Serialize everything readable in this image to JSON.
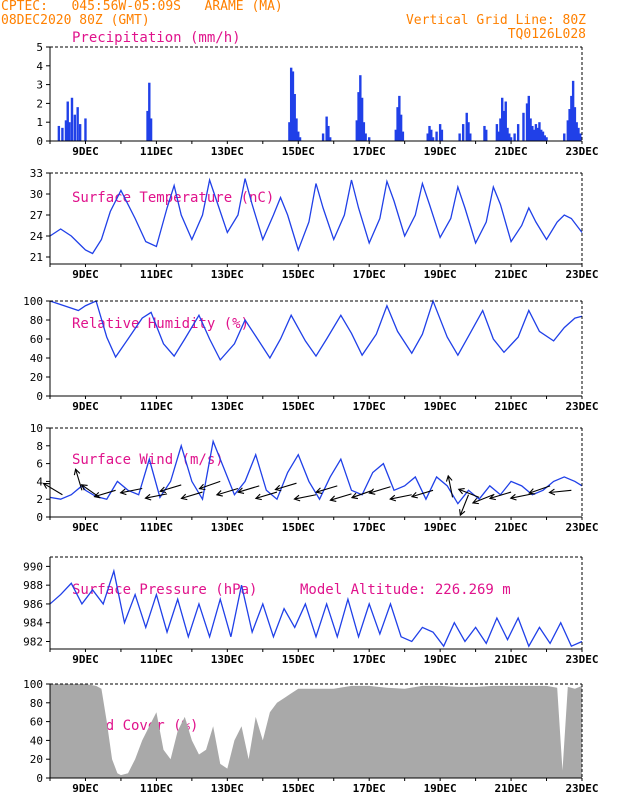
{
  "header": {
    "line1": "CPTEC:   045:56W-05:09S   ARAME (MA)",
    "line2": "08DEC2020 80Z (GMT)",
    "grid_note": "Vertical Grid Line: 80Z",
    "code": "TQ0126L028"
  },
  "colors": {
    "header": "#ff8000",
    "title": "#e0138c",
    "series": "#2040e8",
    "cloud": "#a9a9a9",
    "wind": "#000000"
  },
  "x_axis": {
    "range_days": [
      8.0,
      23.0
    ],
    "ticks": [
      {
        "label": "9DEC",
        "day": 9
      },
      {
        "label": "11DEC",
        "day": 11
      },
      {
        "label": "13DEC",
        "day": 13
      },
      {
        "label": "15DEC",
        "day": 15
      },
      {
        "label": "17DEC",
        "day": 17
      },
      {
        "label": "19DEC",
        "day": 19
      },
      {
        "label": "21DEC",
        "day": 21
      },
      {
        "label": "23DEC",
        "day": 23
      }
    ]
  },
  "chart_data": [
    {
      "type": "bar",
      "title": "Precipitation (mm/h)",
      "ylim": [
        0,
        5
      ],
      "yticks": [
        0,
        1,
        2,
        3,
        4,
        5
      ],
      "x": [
        8.25,
        8.35,
        8.45,
        8.5,
        8.55,
        8.62,
        8.7,
        8.78,
        8.85,
        9.0,
        10.75,
        10.8,
        10.85,
        14.75,
        14.8,
        14.85,
        14.9,
        14.95,
        15.0,
        15.05,
        15.7,
        15.8,
        15.85,
        15.9,
        16.65,
        16.7,
        16.75,
        16.8,
        16.85,
        16.9,
        17.0,
        17.75,
        17.8,
        17.85,
        17.9,
        17.95,
        18.65,
        18.7,
        18.75,
        18.8,
        18.9,
        19.0,
        19.05,
        19.55,
        19.65,
        19.75,
        19.8,
        19.85,
        20.25,
        20.3,
        20.6,
        20.65,
        20.7,
        20.75,
        20.8,
        20.85,
        20.9,
        20.95,
        21.0,
        21.1,
        21.2,
        21.35,
        21.45,
        21.5,
        21.55,
        21.6,
        21.65,
        21.7,
        21.75,
        21.8,
        21.85,
        21.9,
        21.95,
        22.0,
        22.5,
        22.6,
        22.65,
        22.7,
        22.75,
        22.8,
        22.85,
        22.9,
        22.95
      ],
      "values": [
        0.8,
        0.7,
        1.1,
        2.1,
        1.0,
        2.3,
        1.4,
        1.8,
        0.9,
        1.2,
        1.6,
        3.1,
        1.2,
        1.0,
        3.9,
        3.7,
        2.5,
        1.2,
        0.5,
        0.2,
        0.4,
        1.3,
        0.8,
        0.2,
        1.1,
        2.6,
        3.5,
        2.3,
        1.0,
        0.4,
        0.2,
        0.6,
        1.8,
        2.4,
        1.4,
        0.5,
        0.4,
        0.8,
        0.6,
        0.2,
        0.5,
        0.9,
        0.6,
        0.4,
        0.9,
        1.5,
        1.0,
        0.4,
        0.8,
        0.6,
        0.9,
        0.5,
        1.2,
        2.3,
        1.6,
        2.1,
        0.7,
        0.4,
        0.2,
        0.4,
        0.9,
        1.5,
        2.0,
        2.4,
        1.2,
        0.8,
        0.6,
        0.9,
        0.7,
        1.0,
        0.6,
        0.5,
        0.3,
        0.2,
        0.4,
        1.1,
        1.7,
        2.4,
        3.2,
        1.8,
        1.0,
        0.7,
        0.4
      ]
    },
    {
      "type": "line",
      "title": "Surface Temperature (nC)",
      "ylim": [
        20,
        33
      ],
      "yticks": [
        21,
        24,
        27,
        30,
        33
      ],
      "x": [
        8.0,
        8.3,
        8.6,
        8.9,
        9.0,
        9.2,
        9.45,
        9.7,
        10.0,
        10.4,
        10.7,
        11.0,
        11.3,
        11.5,
        11.7,
        12.0,
        12.3,
        12.5,
        12.7,
        13.0,
        13.3,
        13.5,
        13.7,
        14.0,
        14.3,
        14.5,
        14.7,
        15.0,
        15.3,
        15.5,
        15.7,
        16.0,
        16.3,
        16.5,
        16.7,
        17.0,
        17.3,
        17.5,
        17.7,
        18.0,
        18.3,
        18.5,
        18.7,
        19.0,
        19.3,
        19.5,
        19.7,
        20.0,
        20.3,
        20.5,
        20.7,
        21.0,
        21.3,
        21.5,
        21.7,
        22.0,
        22.3,
        22.5,
        22.7,
        23.0
      ],
      "values": [
        24.0,
        25.0,
        24.0,
        22.5,
        22.0,
        21.5,
        23.5,
        27.5,
        30.5,
        26.5,
        23.2,
        22.5,
        28.0,
        31.2,
        27.0,
        23.5,
        27.0,
        32.0,
        29.0,
        24.5,
        27.0,
        32.2,
        28.5,
        23.5,
        27.0,
        29.5,
        27.0,
        22.0,
        26.0,
        31.5,
        28.0,
        23.5,
        27.0,
        32.0,
        28.0,
        23.0,
        26.5,
        31.8,
        29.0,
        24.0,
        27.0,
        31.5,
        28.5,
        23.8,
        26.5,
        31.0,
        28.0,
        23.0,
        26.0,
        31.0,
        28.5,
        23.2,
        25.5,
        28.0,
        26.0,
        23.5,
        26.0,
        27.0,
        26.5,
        24.5
      ]
    },
    {
      "type": "line",
      "title": "Relative Humidity (%)",
      "ylim": [
        0,
        100
      ],
      "yticks": [
        0,
        20,
        40,
        60,
        80,
        100
      ],
      "x": [
        8.0,
        8.4,
        8.8,
        9.0,
        9.3,
        9.6,
        9.85,
        10.2,
        10.6,
        10.85,
        11.2,
        11.5,
        11.8,
        12.2,
        12.5,
        12.8,
        13.2,
        13.5,
        13.8,
        14.2,
        14.5,
        14.8,
        15.2,
        15.5,
        15.8,
        16.2,
        16.5,
        16.8,
        17.2,
        17.5,
        17.8,
        18.2,
        18.5,
        18.8,
        19.2,
        19.5,
        19.8,
        20.2,
        20.5,
        20.8,
        21.2,
        21.5,
        21.8,
        22.2,
        22.5,
        22.8,
        23.0
      ],
      "values": [
        100,
        95,
        90,
        95,
        100,
        62,
        41,
        60,
        82,
        88,
        55,
        42,
        60,
        85,
        60,
        38,
        55,
        80,
        63,
        40,
        60,
        85,
        58,
        42,
        60,
        85,
        66,
        43,
        65,
        95,
        68,
        45,
        65,
        100,
        62,
        43,
        63,
        90,
        60,
        46,
        62,
        90,
        68,
        58,
        72,
        82,
        84
      ]
    },
    {
      "type": "line",
      "title": "Surface Wind (m/s)",
      "ylim": [
        0,
        10
      ],
      "yticks": [
        0,
        2,
        4,
        6,
        8,
        10
      ],
      "x": [
        8.0,
        8.3,
        8.6,
        8.9,
        9.0,
        9.3,
        9.6,
        9.9,
        10.2,
        10.5,
        10.8,
        11.1,
        11.4,
        11.7,
        12.0,
        12.3,
        12.6,
        12.9,
        13.2,
        13.5,
        13.8,
        14.1,
        14.4,
        14.7,
        15.0,
        15.3,
        15.6,
        15.9,
        16.2,
        16.5,
        16.8,
        17.1,
        17.4,
        17.7,
        18.0,
        18.3,
        18.6,
        18.9,
        19.2,
        19.5,
        19.8,
        20.1,
        20.4,
        20.7,
        21.0,
        21.3,
        21.6,
        21.9,
        22.2,
        22.5,
        22.8,
        23.0
      ],
      "values": [
        2.2,
        2.0,
        2.5,
        3.5,
        3.0,
        2.3,
        2.0,
        4.0,
        3.0,
        2.5,
        6.5,
        2.2,
        4.0,
        8.0,
        4.0,
        2.0,
        8.5,
        5.5,
        2.5,
        4.0,
        7.0,
        3.0,
        2.0,
        5.0,
        7.0,
        4.0,
        2.0,
        4.5,
        6.5,
        3.0,
        2.5,
        5.0,
        6.0,
        3.0,
        3.5,
        4.5,
        2.0,
        4.5,
        3.5,
        1.5,
        3.0,
        2.0,
        3.5,
        2.5,
        4.0,
        3.5,
        2.5,
        3.0,
        4.0,
        4.5,
        4.0,
        3.5
      ]
    },
    {
      "type": "line",
      "title": "Surface Pressure (hPa)",
      "annotation": "Model Altitude: 226.269 m",
      "ylim": [
        981.2,
        991
      ],
      "yticks": [
        982,
        984,
        986,
        988,
        990
      ],
      "x": [
        8.0,
        8.3,
        8.6,
        8.9,
        9.2,
        9.5,
        9.8,
        10.1,
        10.4,
        10.7,
        11.0,
        11.3,
        11.6,
        11.9,
        12.2,
        12.5,
        12.8,
        13.1,
        13.4,
        13.7,
        14.0,
        14.3,
        14.6,
        14.9,
        15.2,
        15.5,
        15.8,
        16.1,
        16.4,
        16.7,
        17.0,
        17.3,
        17.6,
        17.9,
        18.2,
        18.5,
        18.8,
        19.1,
        19.4,
        19.7,
        20.0,
        20.3,
        20.6,
        20.9,
        21.2,
        21.5,
        21.8,
        22.1,
        22.4,
        22.7,
        23.0
      ],
      "values": [
        986.0,
        987.0,
        988.2,
        986.0,
        987.5,
        986.0,
        989.5,
        984.0,
        987.0,
        983.5,
        987.0,
        983.0,
        986.5,
        982.5,
        986.0,
        982.5,
        986.5,
        982.5,
        988.0,
        983.0,
        986.0,
        982.5,
        985.5,
        983.5,
        986.0,
        982.5,
        986.0,
        982.5,
        986.5,
        982.5,
        986.0,
        982.8,
        986.0,
        982.5,
        982.0,
        983.5,
        983.0,
        981.5,
        984.0,
        982.0,
        983.5,
        981.8,
        984.5,
        982.2,
        984.5,
        981.5,
        983.5,
        981.8,
        984.0,
        981.5,
        982.0
      ]
    },
    {
      "type": "area",
      "title": "Cloud Cover (%)",
      "ylim": [
        0,
        100
      ],
      "yticks": [
        0,
        20,
        40,
        60,
        80,
        100
      ],
      "x": [
        8.0,
        8.5,
        9.0,
        9.3,
        9.45,
        9.6,
        9.75,
        9.9,
        10.0,
        10.2,
        10.4,
        10.6,
        10.8,
        11.0,
        11.2,
        11.4,
        11.6,
        11.8,
        12.0,
        12.2,
        12.4,
        12.6,
        12.8,
        13.0,
        13.2,
        13.4,
        13.6,
        13.8,
        14.0,
        14.2,
        14.4,
        14.6,
        14.8,
        15.0,
        15.5,
        16.0,
        16.5,
        17.0,
        17.5,
        18.0,
        18.5,
        19.0,
        19.5,
        20.0,
        20.5,
        21.0,
        21.5,
        22.0,
        22.3,
        22.45,
        22.6,
        22.8,
        23.0
      ],
      "values": [
        100,
        100,
        100,
        98,
        95,
        60,
        20,
        5,
        3,
        5,
        20,
        40,
        55,
        70,
        30,
        20,
        50,
        65,
        40,
        25,
        30,
        55,
        15,
        10,
        40,
        55,
        20,
        65,
        40,
        70,
        80,
        85,
        90,
        95,
        95,
        95,
        98,
        98,
        96,
        95,
        98,
        98,
        97,
        97,
        98,
        98,
        98,
        98,
        96,
        8,
        97,
        95,
        98
      ]
    }
  ],
  "wind_arrows": [
    {
      "day": 8.35,
      "speed": 2.5,
      "dx": -1.0,
      "dy": 0.6
    },
    {
      "day": 8.9,
      "speed": 3.0,
      "dx": -0.3,
      "dy": 1.0
    },
    {
      "day": 9.4,
      "speed": 2.2,
      "dx": -1.0,
      "dy": 0.7
    },
    {
      "day": 9.85,
      "speed": 3.0,
      "dx": -1.0,
      "dy": -0.3
    },
    {
      "day": 10.6,
      "speed": 3.2,
      "dx": -1.0,
      "dy": -0.2
    },
    {
      "day": 11.3,
      "speed": 2.6,
      "dx": -1.0,
      "dy": -0.2
    },
    {
      "day": 11.7,
      "speed": 3.6,
      "dx": -1.0,
      "dy": -0.3
    },
    {
      "day": 12.3,
      "speed": 2.8,
      "dx": -1.0,
      "dy": -0.3
    },
    {
      "day": 12.8,
      "speed": 4.0,
      "dx": -1.0,
      "dy": -0.35
    },
    {
      "day": 13.3,
      "speed": 3.2,
      "dx": -1.0,
      "dy": -0.3
    },
    {
      "day": 13.9,
      "speed": 3.5,
      "dx": -1.0,
      "dy": -0.3
    },
    {
      "day": 14.4,
      "speed": 2.8,
      "dx": -1.0,
      "dy": -0.3
    },
    {
      "day": 14.95,
      "speed": 3.8,
      "dx": -1.0,
      "dy": -0.3
    },
    {
      "day": 15.5,
      "speed": 2.5,
      "dx": -1.0,
      "dy": -0.2
    },
    {
      "day": 16.1,
      "speed": 3.5,
      "dx": -1.0,
      "dy": -0.3
    },
    {
      "day": 16.5,
      "speed": 2.6,
      "dx": -1.0,
      "dy": -0.3
    },
    {
      "day": 17.1,
      "speed": 3.0,
      "dx": -1.0,
      "dy": -0.35
    },
    {
      "day": 17.6,
      "speed": 3.4,
      "dx": -1.0,
      "dy": -0.3
    },
    {
      "day": 18.2,
      "speed": 2.5,
      "dx": -1.0,
      "dy": -0.2
    },
    {
      "day": 18.8,
      "speed": 3.0,
      "dx": -1.0,
      "dy": -0.3
    },
    {
      "day": 19.35,
      "speed": 2.2,
      "dx": -0.2,
      "dy": 1.0
    },
    {
      "day": 19.8,
      "speed": 2.5,
      "dx": -0.4,
      "dy": -1.0
    },
    {
      "day": 20.1,
      "speed": 2.2,
      "dx": -1.0,
      "dy": 0.4
    },
    {
      "day": 20.5,
      "speed": 2.5,
      "dx": -1.0,
      "dy": -0.4
    },
    {
      "day": 21.0,
      "speed": 2.8,
      "dx": -1.0,
      "dy": -0.3
    },
    {
      "day": 21.6,
      "speed": 2.6,
      "dx": -1.0,
      "dy": -0.2
    },
    {
      "day": 22.1,
      "speed": 3.5,
      "dx": -1.0,
      "dy": -0.35
    },
    {
      "day": 22.7,
      "speed": 3.0,
      "dx": -1.0,
      "dy": -0.1
    }
  ]
}
